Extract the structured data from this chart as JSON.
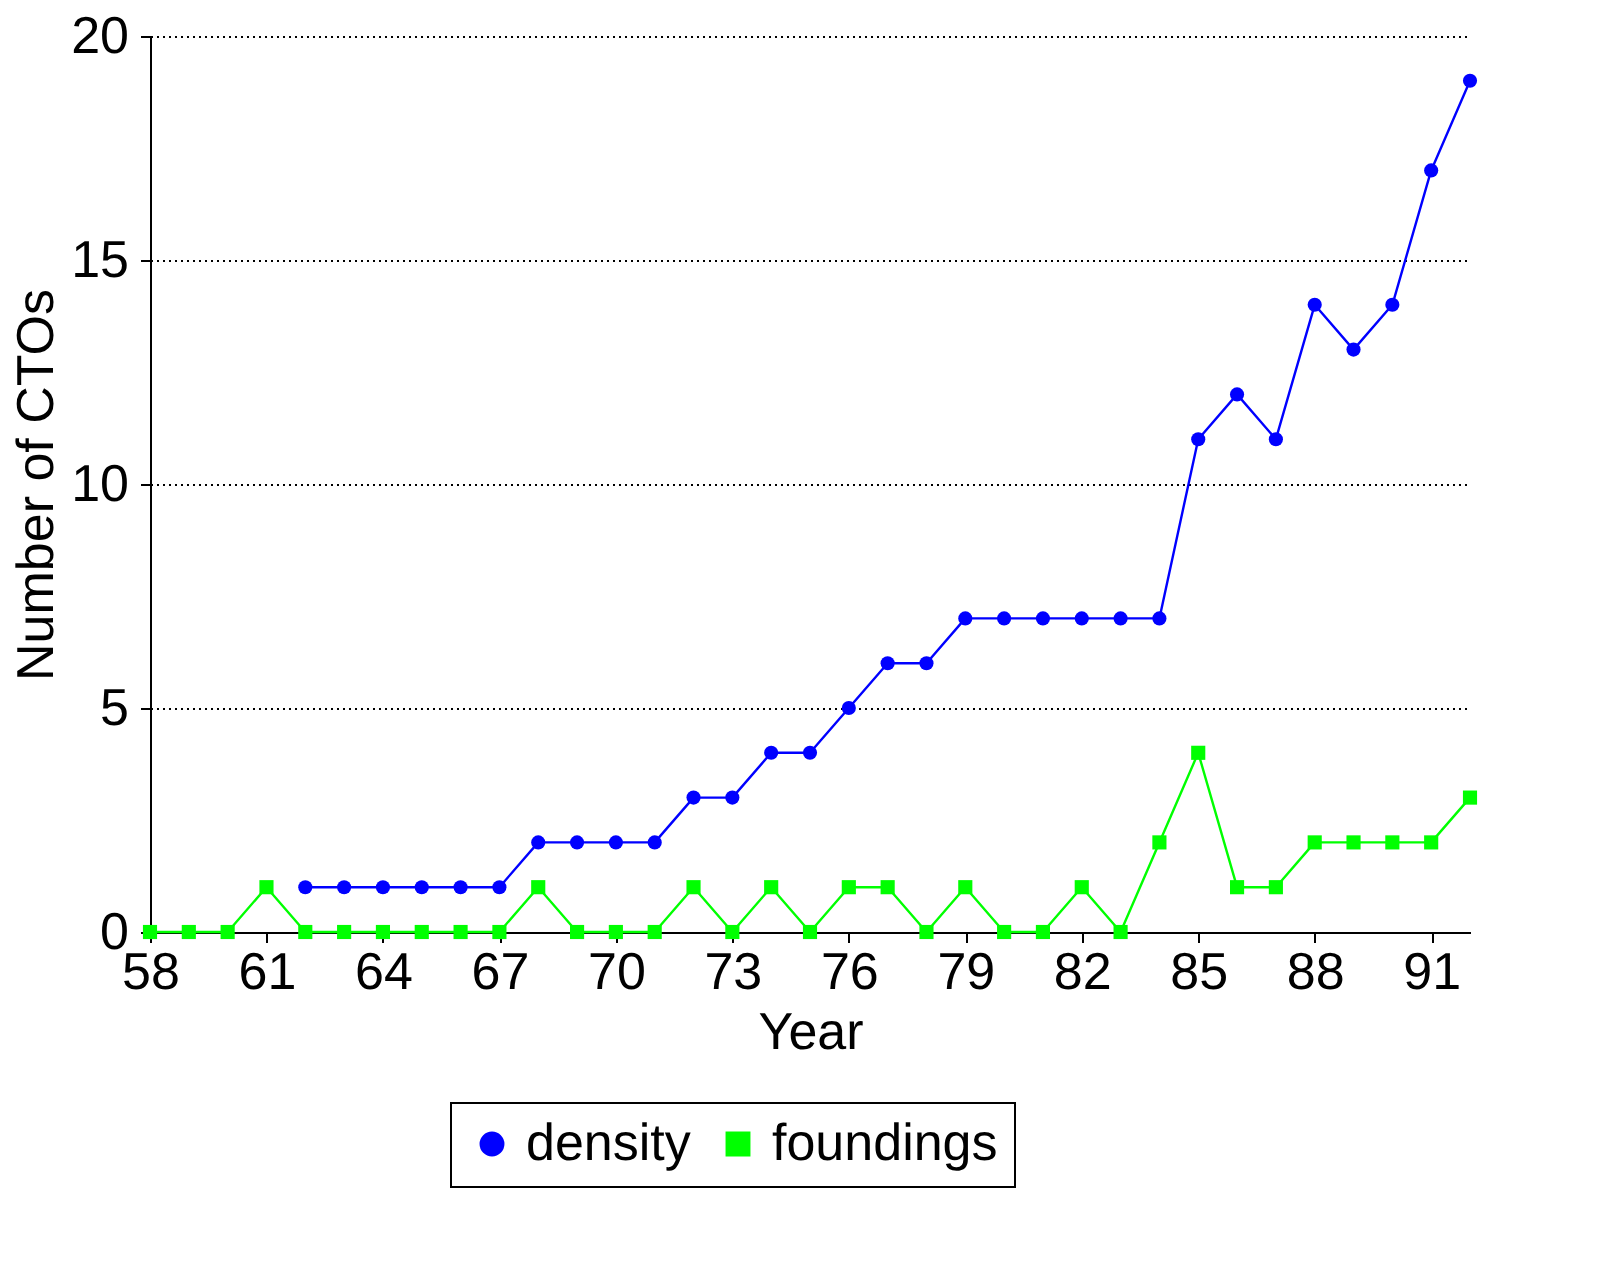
{
  "chart_data": {
    "type": "line",
    "xlabel": "Year",
    "ylabel": "Number of CTOs",
    "x": [
      58,
      59,
      60,
      61,
      62,
      63,
      64,
      65,
      66,
      67,
      68,
      69,
      70,
      71,
      72,
      73,
      74,
      75,
      76,
      77,
      78,
      79,
      80,
      81,
      82,
      83,
      84,
      85,
      86,
      87,
      88,
      89,
      90,
      91,
      92
    ],
    "series": [
      {
        "name": "density",
        "color": "#0000ff",
        "marker": "circle",
        "values": [
          null,
          null,
          null,
          null,
          1,
          1,
          1,
          1,
          1,
          1,
          2,
          2,
          2,
          2,
          3,
          3,
          4,
          4,
          5,
          6,
          6,
          7,
          7,
          7,
          7,
          7,
          7,
          11,
          12,
          11,
          14,
          13,
          14,
          17,
          19
        ]
      },
      {
        "name": "foundings",
        "color": "#00ff00",
        "marker": "square",
        "values": [
          0,
          0,
          0,
          1,
          0,
          0,
          0,
          0,
          0,
          0,
          1,
          0,
          0,
          0,
          1,
          0,
          1,
          0,
          1,
          1,
          0,
          1,
          0,
          0,
          1,
          0,
          2,
          4,
          1,
          1,
          2,
          2,
          2,
          2,
          3
        ]
      }
    ],
    "xlim": [
      58,
      92
    ],
    "xticks": [
      58,
      61,
      64,
      67,
      70,
      73,
      76,
      79,
      82,
      85,
      88,
      91
    ],
    "ylim": [
      0,
      20
    ],
    "yticks": [
      0,
      5,
      10,
      15,
      20
    ],
    "grid": "y",
    "legend": "bottom",
    "line_style": "solid"
  }
}
